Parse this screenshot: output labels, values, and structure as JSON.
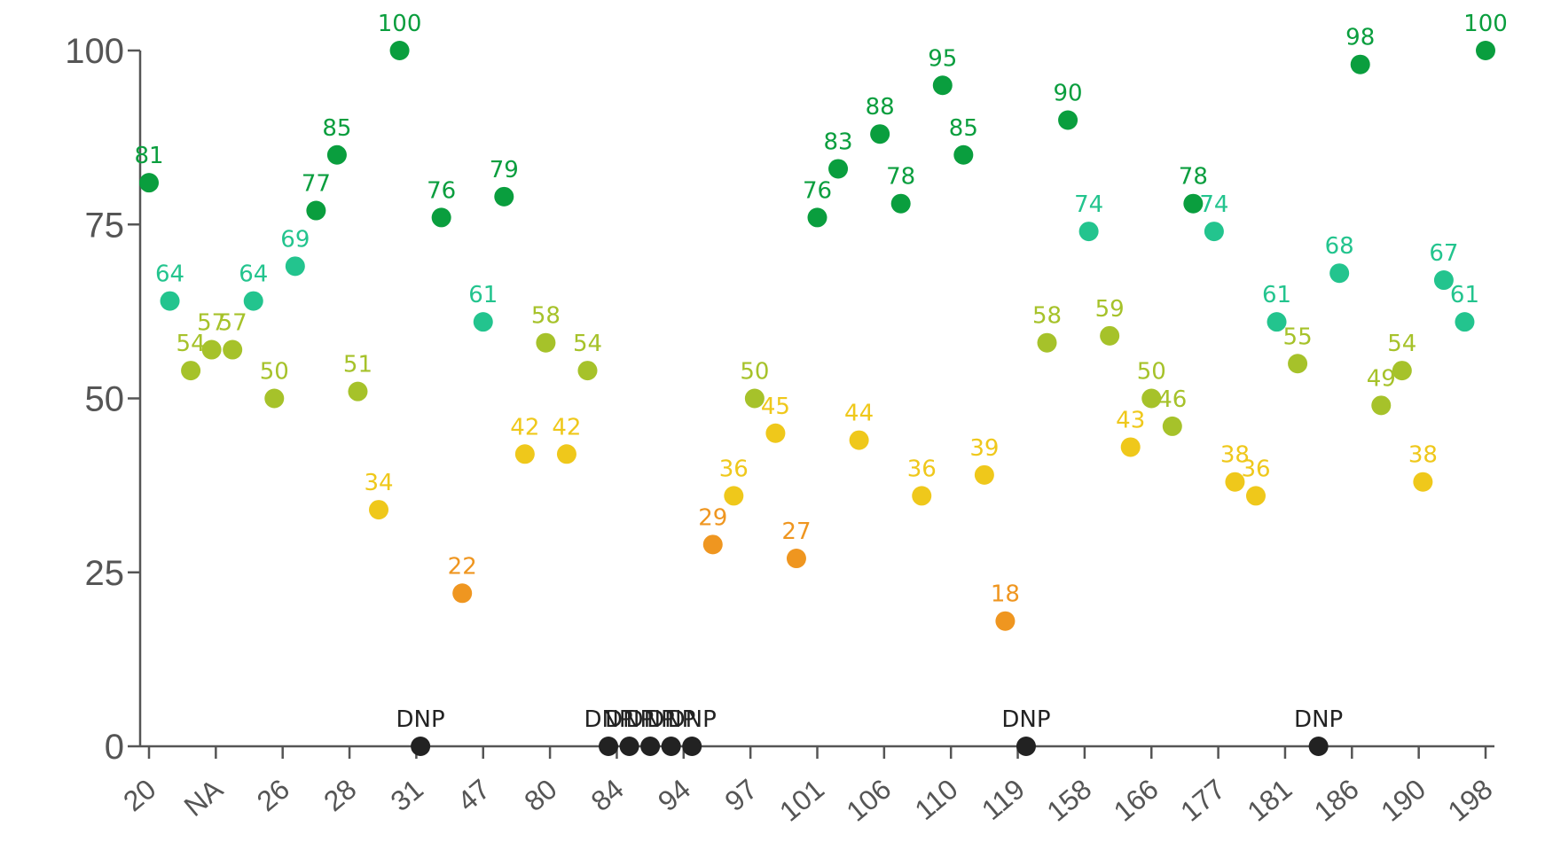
{
  "chart_data": {
    "type": "scatter",
    "title": "",
    "xlabel": "",
    "ylabel": "",
    "ylim": [
      0,
      100
    ],
    "yticks": [
      0,
      25,
      50,
      75,
      100
    ],
    "xtick_labels": [
      "20",
      "NA",
      "26",
      "28",
      "31",
      "47",
      "80",
      "84",
      "94",
      "97",
      "101",
      "106",
      "110",
      "119",
      "158",
      "166",
      "177",
      "181",
      "186",
      "190",
      "198"
    ],
    "grid": false,
    "dnp_label": "DNP",
    "colors": {
      "green": "#0a9e3e",
      "teal": "#23c48e",
      "lime": "#a6c22a",
      "yellow": "#efc81b",
      "orange": "#ef9620",
      "dnp": "#222222"
    },
    "points": [
      {
        "y": 81,
        "label": "81"
      },
      {
        "y": 64,
        "label": "64"
      },
      {
        "y": 54,
        "label": "54"
      },
      {
        "y": 57,
        "label": "57"
      },
      {
        "y": 57,
        "label": "57"
      },
      {
        "y": 64,
        "label": "64"
      },
      {
        "y": 50,
        "label": "50"
      },
      {
        "y": 69,
        "label": "69"
      },
      {
        "y": 77,
        "label": "77"
      },
      {
        "y": 85,
        "label": "85"
      },
      {
        "y": 51,
        "label": "51"
      },
      {
        "y": 34,
        "label": "34"
      },
      {
        "y": 100,
        "label": "100"
      },
      {
        "y": 0,
        "label": "DNP"
      },
      {
        "y": 76,
        "label": "76"
      },
      {
        "y": 22,
        "label": "22"
      },
      {
        "y": 61,
        "label": "61"
      },
      {
        "y": 79,
        "label": "79"
      },
      {
        "y": 42,
        "label": "42"
      },
      {
        "y": 58,
        "label": "58"
      },
      {
        "y": 42,
        "label": "42"
      },
      {
        "y": 54,
        "label": "54"
      },
      {
        "y": 0,
        "label": "DNP"
      },
      {
        "y": 0,
        "label": "DNP"
      },
      {
        "y": 0,
        "label": "DNP"
      },
      {
        "y": 0,
        "label": "DNP"
      },
      {
        "y": 0,
        "label": "DNP"
      },
      {
        "y": 29,
        "label": "29"
      },
      {
        "y": 36,
        "label": "36"
      },
      {
        "y": 50,
        "label": "50"
      },
      {
        "y": 45,
        "label": "45"
      },
      {
        "y": 27,
        "label": "27"
      },
      {
        "y": 76,
        "label": "76"
      },
      {
        "y": 83,
        "label": "83"
      },
      {
        "y": 44,
        "label": "44"
      },
      {
        "y": 88,
        "label": "88"
      },
      {
        "y": 78,
        "label": "78"
      },
      {
        "y": 36,
        "label": "36"
      },
      {
        "y": 95,
        "label": "95"
      },
      {
        "y": 85,
        "label": "85"
      },
      {
        "y": 39,
        "label": "39"
      },
      {
        "y": 18,
        "label": "18"
      },
      {
        "y": 0,
        "label": "DNP"
      },
      {
        "y": 58,
        "label": "58"
      },
      {
        "y": 90,
        "label": "90"
      },
      {
        "y": 74,
        "label": "74"
      },
      {
        "y": 59,
        "label": "59"
      },
      {
        "y": 43,
        "label": "43"
      },
      {
        "y": 50,
        "label": "50"
      },
      {
        "y": 46,
        "label": "46"
      },
      {
        "y": 78,
        "label": "78"
      },
      {
        "y": 74,
        "label": "74"
      },
      {
        "y": 38,
        "label": "38"
      },
      {
        "y": 36,
        "label": "36"
      },
      {
        "y": 61,
        "label": "61"
      },
      {
        "y": 55,
        "label": "55"
      },
      {
        "y": 0,
        "label": "DNP"
      },
      {
        "y": 68,
        "label": "68"
      },
      {
        "y": 98,
        "label": "98"
      },
      {
        "y": 49,
        "label": "49"
      },
      {
        "y": 54,
        "label": "54"
      },
      {
        "y": 38,
        "label": "38"
      },
      {
        "y": 67,
        "label": "67"
      },
      {
        "y": 61,
        "label": "61"
      },
      {
        "y": 100,
        "label": "100"
      }
    ]
  }
}
